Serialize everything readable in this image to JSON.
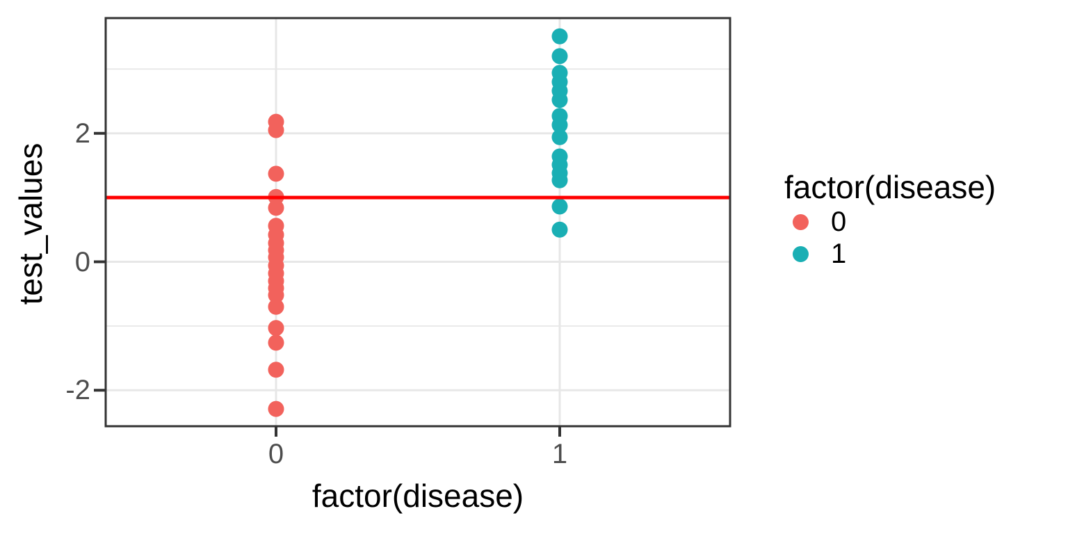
{
  "figure": {
    "x_axis_title": "factor(disease)",
    "y_axis_title": "test_values",
    "legend": {
      "title": "factor(disease)",
      "items": [
        {
          "label": "0",
          "color": "#F2625C"
        },
        {
          "label": "1",
          "color": "#1AAFB4"
        }
      ]
    }
  },
  "chart_data": {
    "type": "scatter",
    "title": "",
    "xlabel": "factor(disease)",
    "ylabel": "test_values",
    "x_categories": [
      "0",
      "1"
    ],
    "y_major_ticks": [
      -2,
      0,
      2
    ],
    "y_minor_gridlines": [
      -1,
      1,
      3
    ],
    "ylim": [
      -2.55,
      3.79
    ],
    "grid": true,
    "legend_position": "right",
    "hline": {
      "y": 1,
      "color": "#FF0000"
    },
    "series": [
      {
        "name": "0",
        "color": "#F2625C",
        "x_category": "0",
        "values": [
          2.18,
          2.05,
          1.37,
          1.01,
          0.84,
          0.56,
          0.42,
          0.29,
          0.18,
          0.07,
          -0.06,
          -0.18,
          -0.3,
          -0.41,
          -0.52,
          -0.7,
          -1.03,
          -1.26,
          -1.68,
          -2.29
        ]
      },
      {
        "name": "1",
        "color": "#1AAFB4",
        "x_category": "1",
        "values": [
          3.51,
          3.2,
          2.94,
          2.8,
          2.66,
          2.52,
          2.27,
          2.13,
          1.94,
          1.64,
          1.51,
          1.38,
          1.27,
          0.86,
          0.5
        ]
      }
    ],
    "style": {
      "panel_border_color": "#333333",
      "gridline_color": "#E7E7E7",
      "tick_color": "#333333",
      "tick_label_color": "#4d4d4d",
      "point_radius_px": 11.5
    }
  }
}
